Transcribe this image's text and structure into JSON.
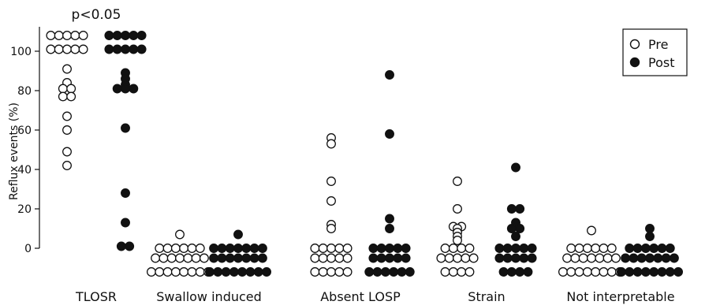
{
  "chart_data": {
    "type": "scatter",
    "subtype": "dot-plot",
    "title": "",
    "xlabel": "",
    "ylabel": "Reflux events (%)",
    "ylim": [
      -12,
      112
    ],
    "yticks": [
      0,
      20,
      40,
      60,
      80,
      100
    ],
    "grid": false,
    "legend": {
      "position": "top-right",
      "entries": [
        "Pre",
        "Post"
      ]
    },
    "categories": [
      "TLOSR",
      "Swallow induced",
      "Absent LOSP",
      "Strain",
      "Not interpretable"
    ],
    "annotations": [
      {
        "text": "p<0.05",
        "category": "TLOSR"
      }
    ],
    "series": [
      {
        "name": "Pre",
        "marker": "open-circle",
        "color": "#111111",
        "values": [
          [
            108,
            108,
            108,
            108,
            108,
            101,
            101,
            101,
            101,
            101,
            91,
            84,
            81,
            81,
            77,
            77,
            67,
            60,
            49,
            42
          ],
          [
            7,
            0,
            0,
            0,
            0,
            0,
            0,
            -5,
            -5,
            -5,
            -5,
            -5,
            -5,
            -5,
            -12,
            -12,
            -12,
            -12,
            -12,
            -12,
            -12,
            -12
          ],
          [
            56,
            53,
            34,
            24,
            12,
            10,
            0,
            0,
            0,
            0,
            0,
            -5,
            -5,
            -5,
            -5,
            -5,
            -12,
            -12,
            -12,
            -12,
            -12
          ],
          [
            34,
            20,
            11,
            11,
            10,
            8,
            6,
            4,
            0,
            0,
            0,
            0,
            -5,
            -5,
            -5,
            -5,
            -5,
            -12,
            -12,
            -12,
            -12
          ],
          [
            9,
            0,
            0,
            0,
            0,
            0,
            0,
            -5,
            -5,
            -5,
            -5,
            -5,
            -5,
            -5,
            -12,
            -12,
            -12,
            -12,
            -12,
            -12,
            -12,
            -12
          ]
        ]
      },
      {
        "name": "Post",
        "marker": "filled-circle",
        "color": "#111111",
        "values": [
          [
            108,
            108,
            108,
            108,
            108,
            101,
            101,
            101,
            101,
            101,
            89,
            86,
            83,
            81,
            81,
            81,
            61,
            28,
            13,
            1,
            1
          ],
          [
            7,
            0,
            0,
            0,
            0,
            0,
            0,
            0,
            -5,
            -5,
            -5,
            -5,
            -5,
            -5,
            -5,
            -12,
            -12,
            -12,
            -12,
            -12,
            -12,
            -12,
            -12
          ],
          [
            88,
            58,
            15,
            10,
            0,
            0,
            0,
            0,
            0,
            -5,
            -5,
            -5,
            -5,
            -5,
            -12,
            -12,
            -12,
            -12,
            -12,
            -12
          ],
          [
            41,
            20,
            20,
            13,
            10,
            10,
            6,
            0,
            0,
            0,
            0,
            0,
            -5,
            -5,
            -5,
            -5,
            -5,
            -12,
            -12,
            -12,
            -12
          ],
          [
            10,
            6,
            0,
            0,
            0,
            0,
            0,
            0,
            -5,
            -5,
            -5,
            -5,
            -5,
            -5,
            -5,
            -12,
            -12,
            -12,
            -12,
            -12,
            -12,
            -12,
            -12
          ]
        ]
      }
    ]
  }
}
